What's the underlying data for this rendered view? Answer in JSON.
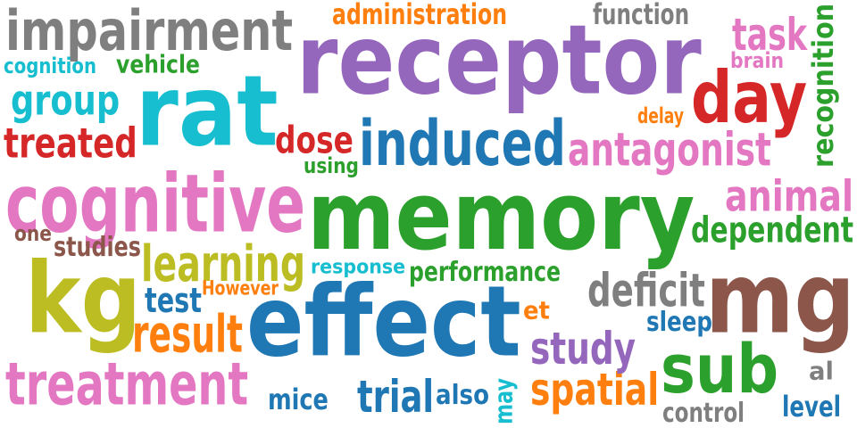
{
  "colors": {
    "background": "#ffffff",
    "gray": "#7f7f7f",
    "purple": "#9467bd",
    "orange": "#ff7f0e",
    "cyan": "#17becf",
    "green": "#2ca02c",
    "red": "#d62728",
    "blue": "#1f77b4",
    "pink": "#e377c2",
    "olive": "#bcbd22",
    "brown": "#8c564b"
  },
  "words": [
    {
      "text": "receptor",
      "color": "#9467bd"
    },
    {
      "text": "memory",
      "color": "#2ca02c"
    },
    {
      "text": "effect",
      "color": "#1f77b4"
    },
    {
      "text": "rat",
      "color": "#17becf"
    },
    {
      "text": "kg",
      "color": "#bcbd22"
    },
    {
      "text": "mg",
      "color": "#8c564b"
    },
    {
      "text": "cognitive",
      "color": "#e377c2"
    },
    {
      "text": "impairment",
      "color": "#7f7f7f"
    },
    {
      "text": "day",
      "color": "#d62728"
    },
    {
      "text": "treatment",
      "color": "#e377c2"
    },
    {
      "text": "sub",
      "color": "#2ca02c"
    },
    {
      "text": "induced",
      "color": "#1f77b4"
    },
    {
      "text": "antagonist",
      "color": "#e377c2"
    },
    {
      "text": "learning",
      "color": "#bcbd22"
    },
    {
      "text": "treated",
      "color": "#d62728"
    },
    {
      "text": "result",
      "color": "#ff7f0e"
    },
    {
      "text": "spatial",
      "color": "#ff7f0e"
    },
    {
      "text": "deficit",
      "color": "#7f7f7f"
    },
    {
      "text": "study",
      "color": "#9467bd"
    },
    {
      "text": "trial",
      "color": "#1f77b4"
    },
    {
      "text": "group",
      "color": "#17becf"
    },
    {
      "text": "animal",
      "color": "#e377c2"
    },
    {
      "text": "task",
      "color": "#e377c2"
    },
    {
      "text": "dependent",
      "color": "#2ca02c"
    },
    {
      "text": "dose",
      "color": "#d62728"
    },
    {
      "text": "recognition",
      "color": "#2ca02c"
    },
    {
      "text": "administration",
      "color": "#ff7f0e"
    },
    {
      "text": "function",
      "color": "#7f7f7f"
    },
    {
      "text": "performance",
      "color": "#2ca02c"
    },
    {
      "text": "test",
      "color": "#1f77b4"
    },
    {
      "text": "studies",
      "color": "#8c564b"
    },
    {
      "text": "mice",
      "color": "#1f77b4"
    },
    {
      "text": "control",
      "color": "#7f7f7f"
    },
    {
      "text": "level",
      "color": "#1f77b4"
    },
    {
      "text": "sleep",
      "color": "#1f77b4"
    },
    {
      "text": "also",
      "color": "#1f77b4"
    },
    {
      "text": "vehicle",
      "color": "#2ca02c"
    },
    {
      "text": "cognition",
      "color": "#17becf"
    },
    {
      "text": "response",
      "color": "#17becf"
    },
    {
      "text": "brain",
      "color": "#e377c2"
    },
    {
      "text": "delay",
      "color": "#ff7f0e"
    },
    {
      "text": "using",
      "color": "#2ca02c"
    },
    {
      "text": "However",
      "color": "#ff7f0e"
    },
    {
      "text": "et",
      "color": "#ff7f0e"
    },
    {
      "text": "al",
      "color": "#7f7f7f"
    },
    {
      "text": "one",
      "color": "#8c564b"
    },
    {
      "text": "may",
      "color": "#17becf"
    }
  ]
}
